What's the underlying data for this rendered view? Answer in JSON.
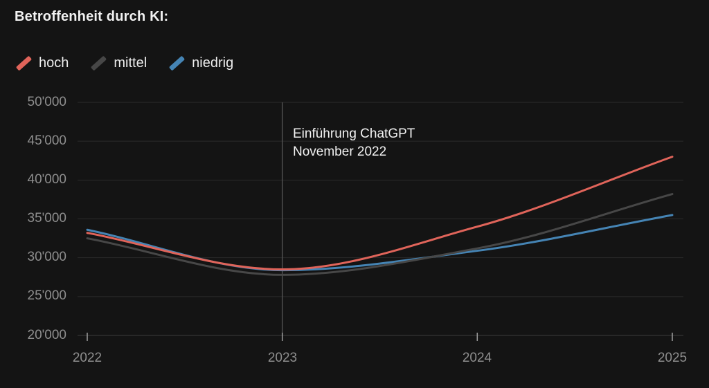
{
  "title": "Betroffenheit durch KI:",
  "annotation": {
    "line1": "Einführung ChatGPT",
    "line2": "November 2022"
  },
  "colors": {
    "background": "#141414",
    "grid_line": "#2b2b2b",
    "axis_line": "#3c3c3c",
    "marker_line": "#4f4f4f",
    "tick": "#9e9e9e",
    "tick_label": "#8e8e8e",
    "text": "#f2f2f2",
    "series_hoch": "#e0645a",
    "series_mittel": "#474747",
    "series_niedrig": "#4584b4"
  },
  "chart_data": {
    "type": "line",
    "title": "Betroffenheit durch KI:",
    "x": [
      2022,
      2023,
      2024,
      2025
    ],
    "x_tick_labels": [
      "2022",
      "2023",
      "2024",
      "2025"
    ],
    "ytick_labels": [
      "50'000",
      "45'000",
      "40'000",
      "35'000",
      "30'000",
      "25'000",
      "20'000"
    ],
    "ylim": [
      20000,
      50000
    ],
    "ytick_step": 5000,
    "grid": "horizontal",
    "legend_position": "top-left",
    "curve": "monotone",
    "series": [
      {
        "name": "hoch",
        "color": "#e0645a",
        "values": [
          33200,
          28500,
          34000,
          43000
        ]
      },
      {
        "name": "mittel",
        "color": "#474747",
        "values": [
          32500,
          27800,
          31200,
          38200
        ]
      },
      {
        "name": "niedrig",
        "color": "#4584b4",
        "values": [
          33600,
          28400,
          30900,
          35500
        ]
      }
    ],
    "annotation": {
      "x": 2023,
      "line1": "Einführung ChatGPT",
      "line2": "November 2022"
    }
  }
}
